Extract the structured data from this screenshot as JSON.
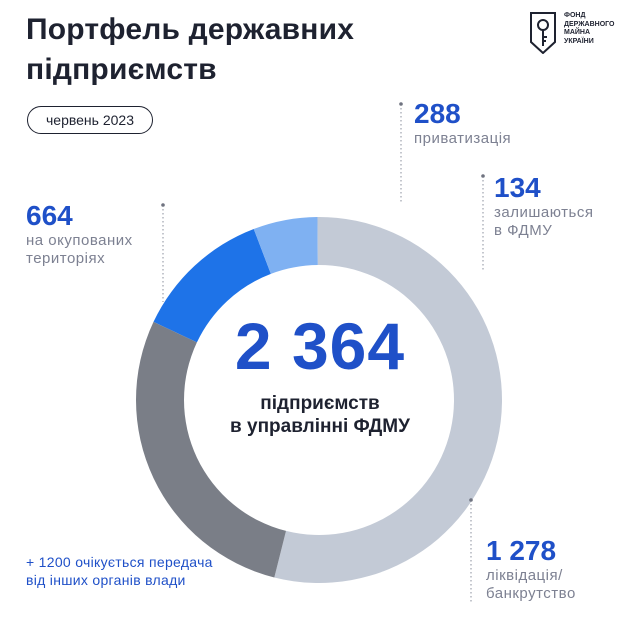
{
  "header": {
    "title": "Портфель державних підприємств",
    "logo_text": "ФОНД ДЕРЖАВНОГО МАЙНА УКРАЇНИ",
    "date": "червень 2023"
  },
  "center": {
    "value": "2 364",
    "label_line1": "підприємств",
    "label_line2": "в управлінні ФДМУ"
  },
  "callouts": [
    {
      "id": "privatization",
      "value": "288",
      "label_lines": [
        "приватизація"
      ]
    },
    {
      "id": "remain",
      "value": "134",
      "label_lines": [
        "залишаються",
        "в ФДМУ"
      ]
    },
    {
      "id": "occupied",
      "value": "664",
      "label_lines": [
        "на окупованих",
        "територіях"
      ]
    },
    {
      "id": "liquidation",
      "value": "1 278",
      "label_lines": [
        "ліквідація/",
        "банкрутство"
      ]
    }
  ],
  "footnote": "+ 1200 очікується передача від інших органів влади",
  "chart_data": {
    "type": "pie",
    "title": "",
    "total": 2364,
    "slices": [
      {
        "label": "приватизація",
        "value": 288,
        "color": "#1e73e8"
      },
      {
        "label": "залишаються в ФДМУ",
        "value": 134,
        "color": "#7fb1f2"
      },
      {
        "label": "ліквідація/банкрутство",
        "value": 1278,
        "color": "#c3cad6"
      },
      {
        "label": "на окупованих територіях",
        "value": 664,
        "color": "#7a7e87"
      }
    ],
    "legend": "callouts"
  }
}
